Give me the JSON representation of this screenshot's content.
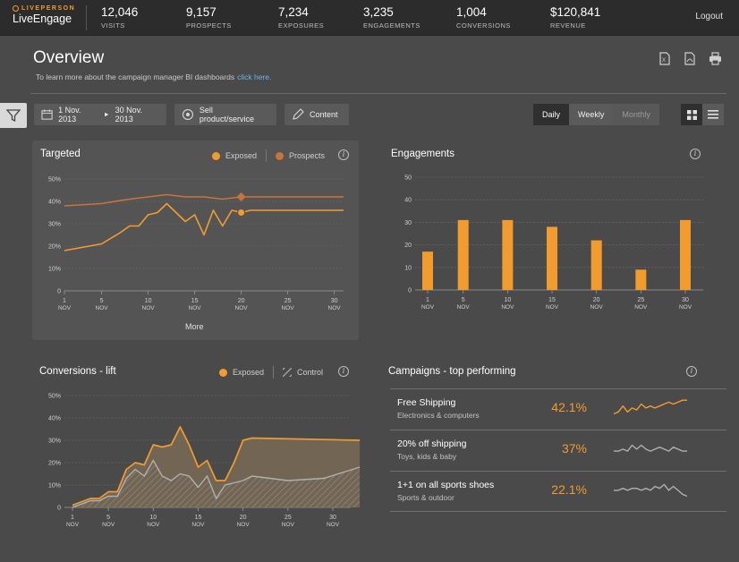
{
  "header": {
    "logo_small": "LIVEPERSON",
    "logo_big": "LiveEngage",
    "stats": [
      {
        "value": "12,046",
        "label": "VISITS"
      },
      {
        "value": "9,157",
        "label": "PROSPECTS"
      },
      {
        "value": "7,234",
        "label": "EXPOSURES"
      },
      {
        "value": "3,235",
        "label": "ENGAGEMENTS"
      },
      {
        "value": "1,004",
        "label": "CONVERSIONS"
      },
      {
        "value": "$120,841",
        "label": "REVENUE"
      }
    ],
    "logout": "Logout"
  },
  "page": {
    "title": "Overview",
    "subtitle": "To learn more about the campaign manager BI dashboards",
    "link": "click here."
  },
  "header_icons": [
    "excel-export-icon",
    "pdf-export-icon",
    "print-icon"
  ],
  "toolbar": {
    "date_start": "1 Nov. 2013",
    "date_arrow": "►",
    "date_end": "30 Nov. 2013",
    "goal": "Sell product/service",
    "content": "Content",
    "periods": [
      "Daily",
      "Weekly",
      "Monthly"
    ],
    "active_period": "Daily"
  },
  "colors": {
    "exposed": "#f29c2f",
    "prospects": "#c8743a",
    "control": "#b0b0b0",
    "bar": "#f29c2f"
  },
  "x_ticks": [
    {
      "day": "1",
      "month": "NOV"
    },
    {
      "day": "5",
      "month": "NOV"
    },
    {
      "day": "10",
      "month": "NOV"
    },
    {
      "day": "15",
      "month": "NOV"
    },
    {
      "day": "20",
      "month": "NOV"
    },
    {
      "day": "25",
      "month": "NOV"
    },
    {
      "day": "30",
      "month": "NOV"
    }
  ],
  "targeted": {
    "title": "Targeted",
    "legend_exposed": "Exposed",
    "legend_prospects": "Prospects",
    "more": "More"
  },
  "engagements": {
    "title": "Engagements"
  },
  "conversions": {
    "title": "Conversions - lift",
    "legend_exposed": "Exposed",
    "legend_control": "Control"
  },
  "campaigns": {
    "title": "Campaigns - top performing",
    "items": [
      {
        "name": "Free Shipping",
        "sub": "Electronics & computers",
        "pct": "42.1%"
      },
      {
        "name": "20% off shipping",
        "sub": "Toys, kids & baby",
        "pct": "37%"
      },
      {
        "name": "1+1 on all sports shoes",
        "sub": "Sports & outdoor",
        "pct": "22.1%"
      }
    ]
  },
  "chart_data": [
    {
      "type": "line",
      "title": "Targeted",
      "y_ticks": [
        "50%",
        "40%",
        "30%",
        "20%",
        "10%",
        "0"
      ],
      "ylim": [
        0,
        50
      ],
      "xlim": [
        1,
        31
      ],
      "series": [
        {
          "name": "Exposed",
          "x": [
            1,
            5,
            7,
            8,
            9,
            10,
            11,
            12,
            13,
            14,
            15,
            16,
            17,
            18,
            19,
            20,
            21,
            25,
            31
          ],
          "y": [
            18,
            21,
            26,
            29,
            29,
            34,
            35,
            39,
            35,
            31,
            34,
            25,
            36,
            29,
            36,
            35,
            36,
            36,
            36
          ]
        },
        {
          "name": "Prospects",
          "x": [
            1,
            5,
            8,
            10,
            12,
            14,
            16,
            18,
            20,
            25,
            31
          ],
          "y": [
            38,
            39,
            41,
            42,
            43,
            42,
            42,
            41,
            42,
            42,
            42
          ]
        }
      ],
      "markers": [
        {
          "series": "Exposed",
          "x": 20,
          "y": 35
        },
        {
          "series": "Prospects",
          "x": 20,
          "y": 42
        }
      ]
    },
    {
      "type": "bar",
      "title": "Engagements",
      "y_ticks": [
        "50",
        "40",
        "30",
        "20",
        "10",
        "0"
      ],
      "ylim": [
        0,
        50
      ],
      "x": [
        1,
        5,
        10,
        15,
        20,
        25,
        30
      ],
      "values": [
        17,
        31,
        31,
        28,
        22,
        9,
        31
      ]
    },
    {
      "type": "area",
      "title": "Conversions - lift",
      "y_ticks": [
        "50%",
        "40%",
        "30%",
        "20%",
        "10%",
        "0"
      ],
      "ylim": [
        0,
        50
      ],
      "xlim": [
        1,
        33
      ],
      "series": [
        {
          "name": "Exposed",
          "x": [
            1,
            3,
            4,
            5,
            6,
            7,
            8,
            9,
            10,
            11,
            12,
            13,
            14,
            15,
            16,
            17,
            18,
            19,
            20,
            21,
            33
          ],
          "y": [
            1,
            4,
            4,
            7,
            7,
            17,
            20,
            19,
            28,
            27,
            28,
            36,
            28,
            18,
            21,
            12,
            12,
            20,
            30,
            31,
            30
          ]
        },
        {
          "name": "Control",
          "x": [
            1,
            3,
            4,
            5,
            6,
            7,
            8,
            9,
            10,
            11,
            12,
            13,
            14,
            15,
            16,
            17,
            18,
            19,
            20,
            21,
            25,
            29,
            33
          ],
          "y": [
            0,
            3,
            3,
            5,
            5,
            13,
            17,
            14,
            21,
            14,
            12,
            15,
            14,
            9,
            14,
            4,
            10,
            11,
            12,
            14,
            12,
            13,
            18
          ]
        }
      ]
    },
    {
      "type": "line",
      "title": "Free Shipping",
      "values": [
        3,
        4,
        7,
        4,
        6,
        5,
        8,
        6,
        7,
        6,
        7,
        8,
        9,
        8,
        9,
        10,
        10
      ]
    },
    {
      "type": "line",
      "title": "20% off shipping",
      "values": [
        5,
        5,
        6,
        5,
        8,
        6,
        8,
        6,
        5,
        6,
        7,
        6,
        5,
        7,
        6,
        5,
        5
      ]
    },
    {
      "type": "line",
      "title": "1+1 on all sports shoes",
      "values": [
        6,
        6,
        7,
        6,
        7,
        7,
        6,
        7,
        6,
        8,
        7,
        9,
        6,
        8,
        6,
        4,
        3
      ]
    }
  ]
}
